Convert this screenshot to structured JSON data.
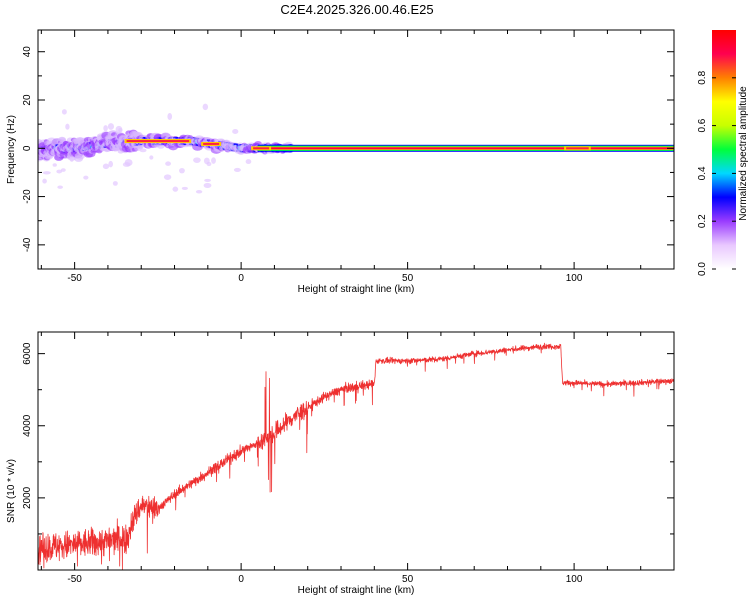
{
  "title": "C2E4.2025.326.00.46.E25",
  "chart_data": [
    {
      "type": "heatmap",
      "title": "C2E4.2025.326.00.46.E25",
      "xlabel": "Height of straight line (km)",
      "ylabel": "Frequency (Hz)",
      "xlim": [
        -61,
        130
      ],
      "ylim": [
        -50,
        49
      ],
      "xticks": [
        -50,
        0,
        50,
        100
      ],
      "yticks": [
        -40,
        -20,
        0,
        20,
        40
      ],
      "xtick_labels": [
        "-50",
        "0",
        "50",
        "100"
      ],
      "ytick_labels": [
        "-40",
        "-20",
        "0",
        "20",
        "40"
      ],
      "centerline": [
        [
          -61,
          -1
        ],
        [
          -55,
          0
        ],
        [
          -50,
          0
        ],
        [
          -45,
          1
        ],
        [
          -40,
          2
        ],
        [
          -35,
          2
        ],
        [
          -30,
          3
        ],
        [
          -25,
          3
        ],
        [
          -20,
          3
        ],
        [
          -15,
          3
        ],
        [
          -10,
          2
        ],
        [
          -5,
          1
        ],
        [
          0,
          0
        ],
        [
          10,
          0
        ],
        [
          20,
          0
        ],
        [
          130,
          0
        ]
      ],
      "colorbar": {
        "label": "Normalized spectral amplitude",
        "range": [
          0,
          1
        ],
        "ticks": [
          0.0,
          0.2,
          0.4,
          0.6,
          0.8
        ],
        "tick_labels": [
          "0.0",
          "0.2",
          "0.4",
          "0.6",
          "0.8"
        ],
        "colormap": [
          "#ffffff",
          "#e9c8ff",
          "#9a3cff",
          "#0000ff",
          "#00d8ff",
          "#00ff3c",
          "#c8ff00",
          "#ffff00",
          "#ff8000",
          "#ff0050",
          "#ff0000"
        ]
      }
    },
    {
      "type": "line",
      "xlabel": "Height of straight line (km)",
      "ylabel": "SNR (10 * v/v)",
      "xlim": [
        -61,
        130
      ],
      "ylim": [
        0,
        6600
      ],
      "xticks": [
        -50,
        0,
        50,
        100
      ],
      "yticks": [
        2000,
        4000,
        6000
      ],
      "xtick_labels": [
        "-50",
        "0",
        "50",
        "100"
      ],
      "ytick_labels": [
        "2000",
        "4000",
        "6000"
      ],
      "color": "#ee3030",
      "trend": [
        [
          -61,
          600
        ],
        [
          -50,
          700
        ],
        [
          -40,
          800
        ],
        [
          -34,
          900
        ],
        [
          -33,
          1300
        ],
        [
          -30,
          1800
        ],
        [
          -25,
          1700
        ],
        [
          -20,
          2100
        ],
        [
          -15,
          2400
        ],
        [
          -10,
          2700
        ],
        [
          -5,
          3000
        ],
        [
          0,
          3300
        ],
        [
          5,
          3500
        ],
        [
          10,
          3800
        ],
        [
          15,
          4200
        ],
        [
          20,
          4500
        ],
        [
          25,
          4800
        ],
        [
          30,
          5000
        ],
        [
          35,
          5100
        ],
        [
          40,
          5150
        ],
        [
          40.5,
          5800
        ],
        [
          50,
          5800
        ],
        [
          60,
          5850
        ],
        [
          70,
          6000
        ],
        [
          80,
          6100
        ],
        [
          90,
          6200
        ],
        [
          96,
          6200
        ],
        [
          96.5,
          5200
        ],
        [
          110,
          5150
        ],
        [
          130,
          5250
        ]
      ]
    }
  ]
}
